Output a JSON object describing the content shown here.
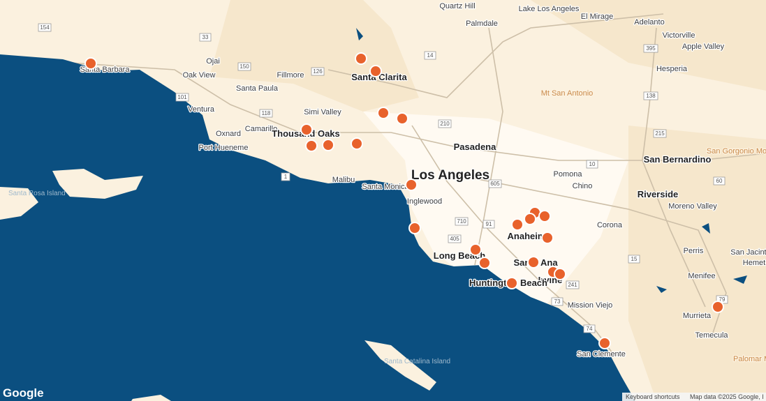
{
  "places": [
    "Quartz Hill",
    "Lake Los Angeles",
    "El Mirage",
    "Adelanto",
    "Victorville",
    "Apple Valley",
    "Palmdale",
    "Hesperia",
    "Santa Barbara",
    "Ojai",
    "Oak View",
    "Fillmore",
    "Santa Clarita",
    "Santa Paula",
    "Ventura",
    "Mt San Antonio",
    "Simi Valley",
    "Oxnard",
    "Camarillo",
    "Thousand Oaks",
    "Port Hueneme",
    "Pasadena",
    "Los Angeles",
    "San Bernardino",
    "San Gorgonio Mountain",
    "Pomona",
    "Chino",
    "Malibu",
    "Santa Monica",
    "Riverside",
    "Moreno Valley",
    "Inglewood",
    "Corona",
    "Anaheim",
    "Perris",
    "San Jacinto",
    "Hemet",
    "Long Beach",
    "Santa Ana",
    "Irvine",
    "Menifee",
    "Huntington Beach",
    "Mission Viejo",
    "Murrieta",
    "Temecula",
    "San Clemente",
    "Santa Rosa Island",
    "Santa Catalina Island",
    "Palomar Mountain"
  ],
  "routes": [
    "154",
    "33",
    "150",
    "126",
    "101",
    "118",
    "14",
    "210",
    "405",
    "10",
    "15",
    "215",
    "91",
    "605",
    "710",
    "241",
    "73",
    "74",
    "1",
    "395",
    "138",
    "60",
    "79"
  ],
  "footer": {
    "logo": "Google",
    "shortcuts": "Keyboard shortcuts",
    "attribution": "Map data ©2025 Google, I"
  }
}
